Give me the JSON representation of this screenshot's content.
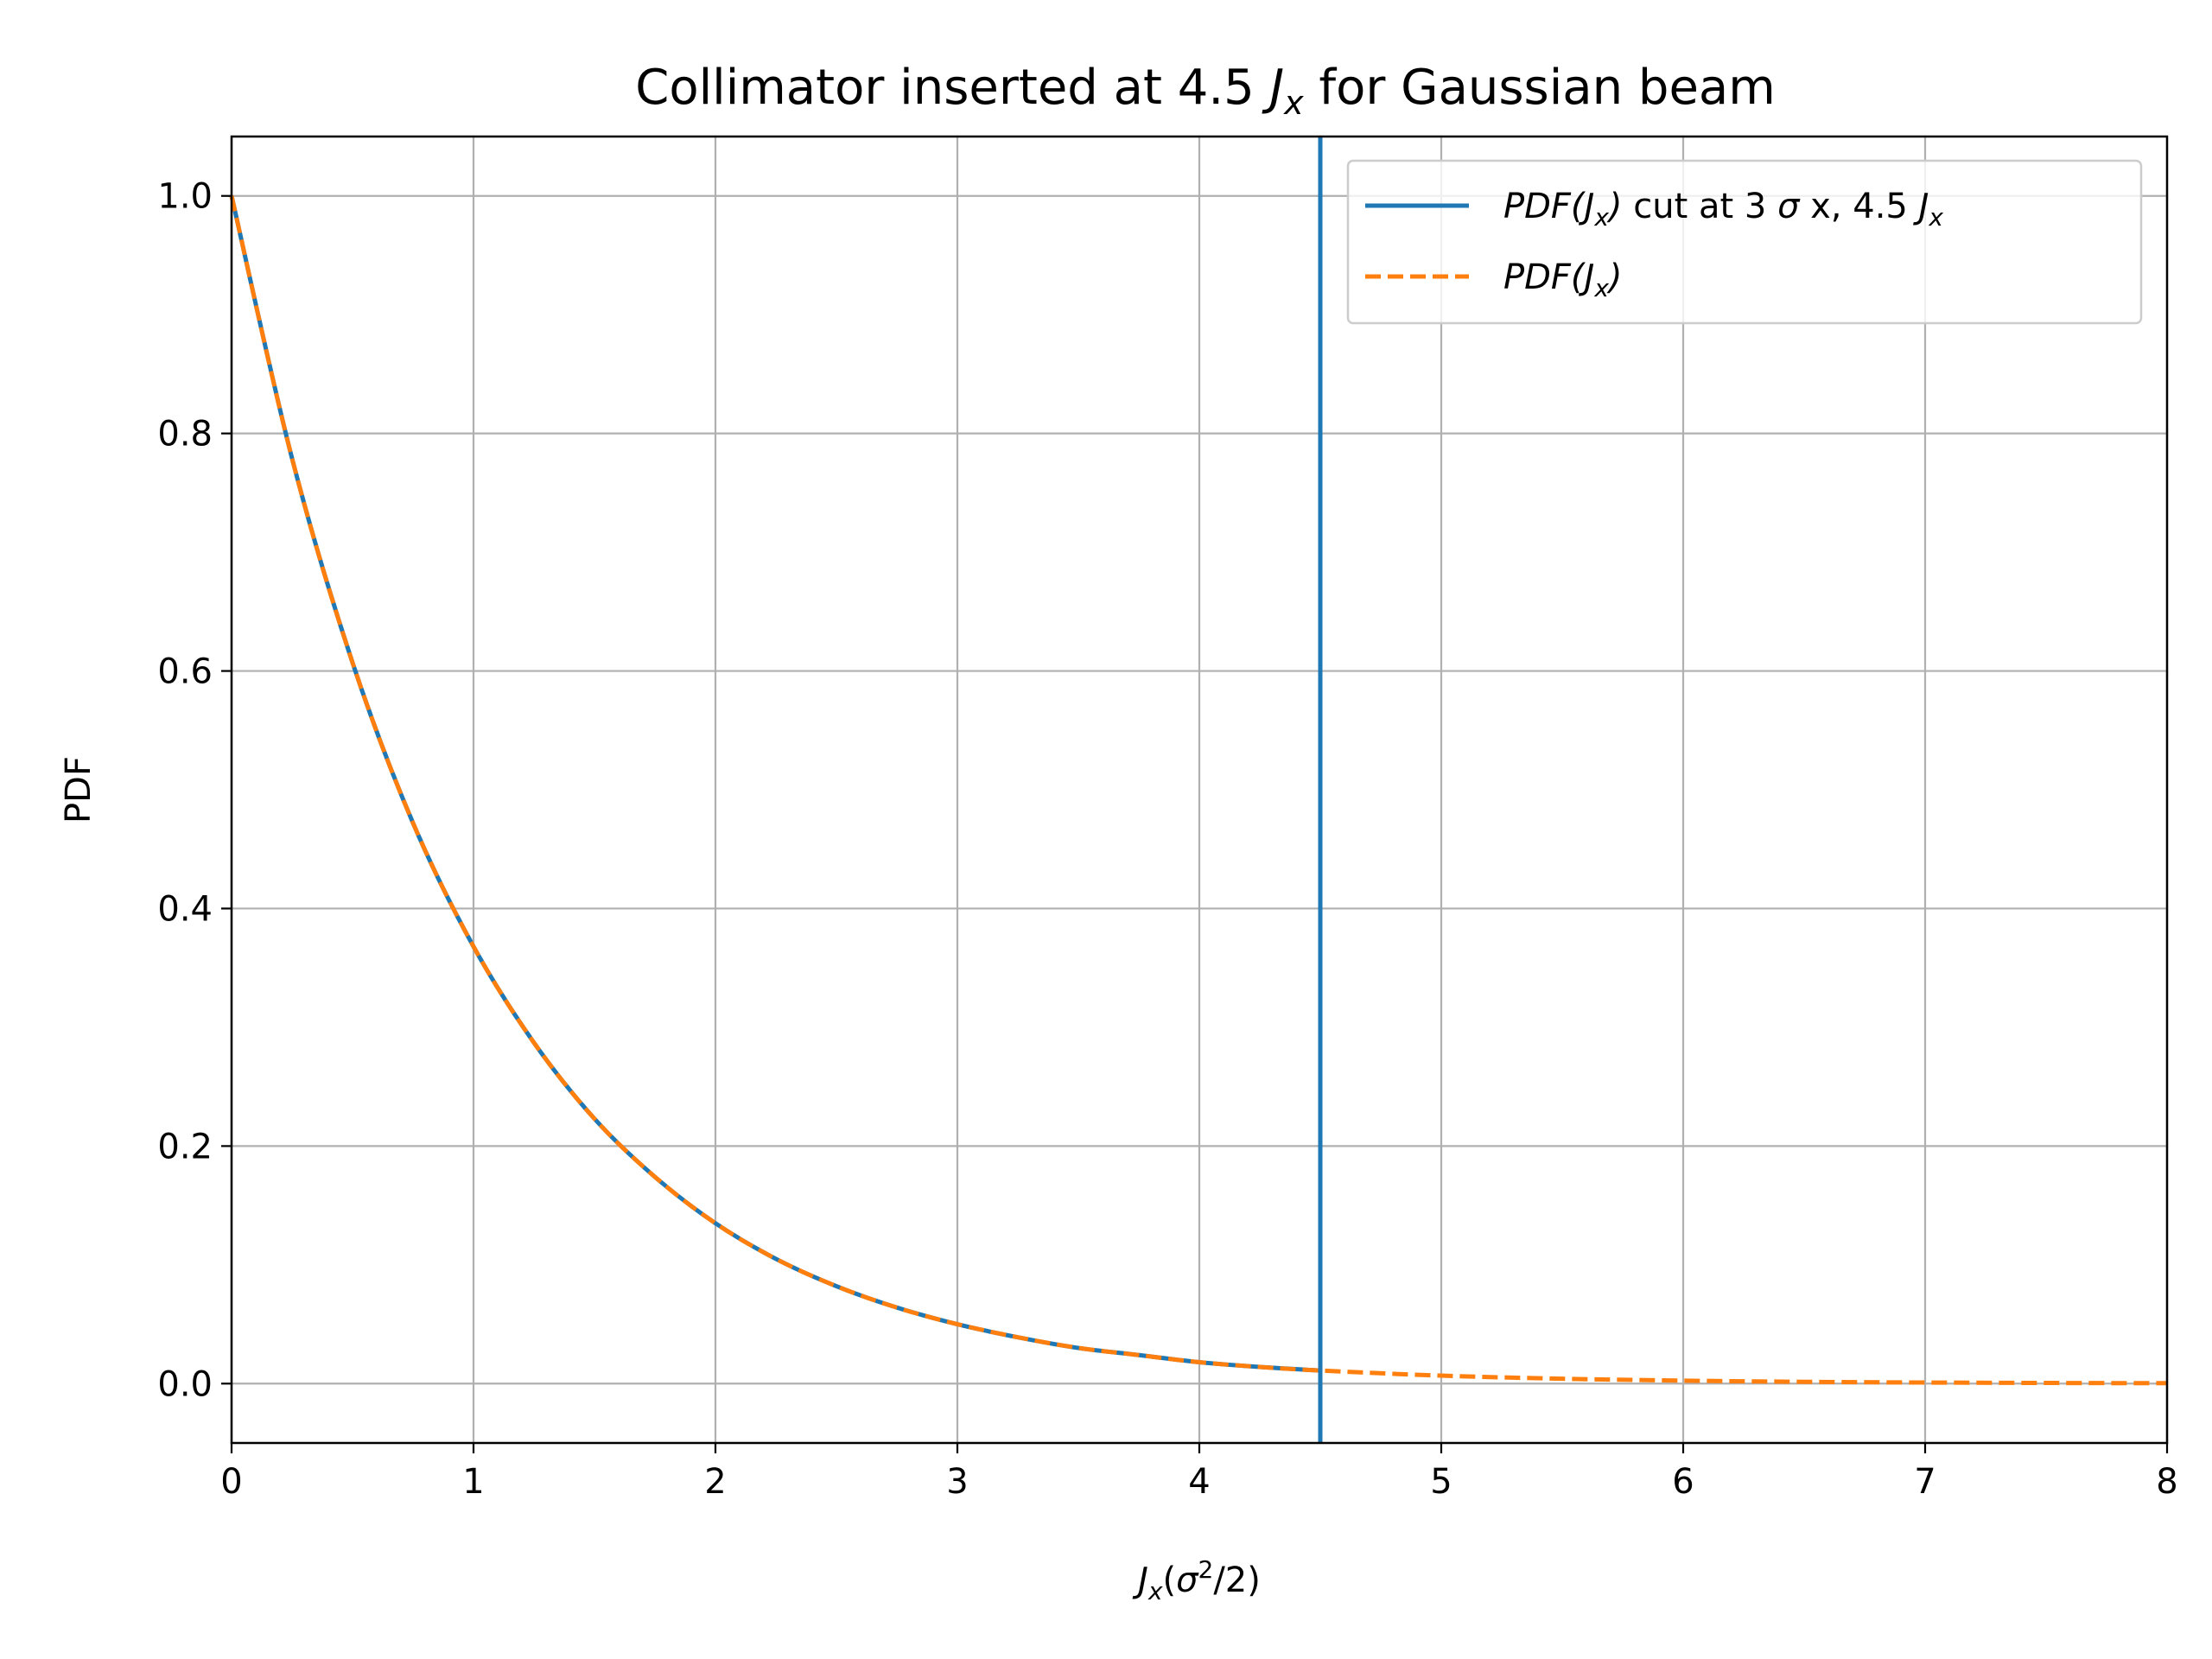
{
  "chart_data": {
    "type": "line",
    "title": {
      "prefix": "Collimator inserted at 4.5 ",
      "var": "J",
      "sub": "x",
      "suffix": " for Gaussian beam"
    },
    "xlabel": {
      "var": "J",
      "sub": "x",
      "paren_open": "(",
      "sigma": "σ",
      "sup": "2",
      "rest": "/2)"
    },
    "ylabel": "PDF",
    "xlim": [
      0,
      8
    ],
    "ylim": [
      -0.05,
      1.05
    ],
    "xticks": [
      0,
      1,
      2,
      3,
      4,
      5,
      6,
      7,
      8
    ],
    "yticks": [
      0.0,
      0.2,
      0.4,
      0.6,
      0.8,
      1.0
    ],
    "xtick_labels": [
      "0",
      "1",
      "2",
      "3",
      "4",
      "5",
      "6",
      "7",
      "8"
    ],
    "ytick_labels": [
      "0.0",
      "0.2",
      "0.4",
      "0.6",
      "0.8",
      "1.0"
    ],
    "grid": true,
    "legend_position": "top-right",
    "vertical_line": {
      "x": 4.5,
      "color": "#1f77b4"
    },
    "series": [
      {
        "legend": {
          "func": "PDF(",
          "var": "J",
          "sub": "x",
          "close": ")",
          "mid": " cut at 3 ",
          "sigma": "σ",
          "mid2": " x, 4.5 ",
          "var2": "J",
          "sub2": "x"
        },
        "color": "#1f77b4",
        "style": "solid",
        "x": [
          0,
          0.25,
          0.5,
          0.75,
          1,
          1.25,
          1.5,
          1.75,
          2,
          2.25,
          2.5,
          2.75,
          3,
          3.25,
          3.5,
          3.75,
          4,
          4.25,
          4.5
        ],
        "y": [
          1.0,
          0.779,
          0.607,
          0.472,
          0.368,
          0.287,
          0.223,
          0.174,
          0.135,
          0.105,
          0.082,
          0.064,
          0.05,
          0.039,
          0.03,
          0.024,
          0.018,
          0.014,
          0.011
        ]
      },
      {
        "legend": {
          "func": "PDF(",
          "var": "J",
          "sub": "x",
          "close": ")"
        },
        "color": "#ff7f0e",
        "style": "dashed",
        "x": [
          0,
          0.25,
          0.5,
          0.75,
          1,
          1.25,
          1.5,
          1.75,
          2,
          2.25,
          2.5,
          2.75,
          3,
          3.25,
          3.5,
          3.75,
          4,
          4.25,
          4.5,
          5,
          5.5,
          6,
          6.5,
          7,
          7.5,
          8
        ],
        "y": [
          1.0,
          0.779,
          0.607,
          0.472,
          0.368,
          0.287,
          0.223,
          0.174,
          0.135,
          0.105,
          0.082,
          0.064,
          0.05,
          0.039,
          0.03,
          0.024,
          0.018,
          0.014,
          0.011,
          0.0067,
          0.0041,
          0.0025,
          0.0015,
          0.0009,
          0.00055,
          0.00034
        ]
      }
    ]
  }
}
